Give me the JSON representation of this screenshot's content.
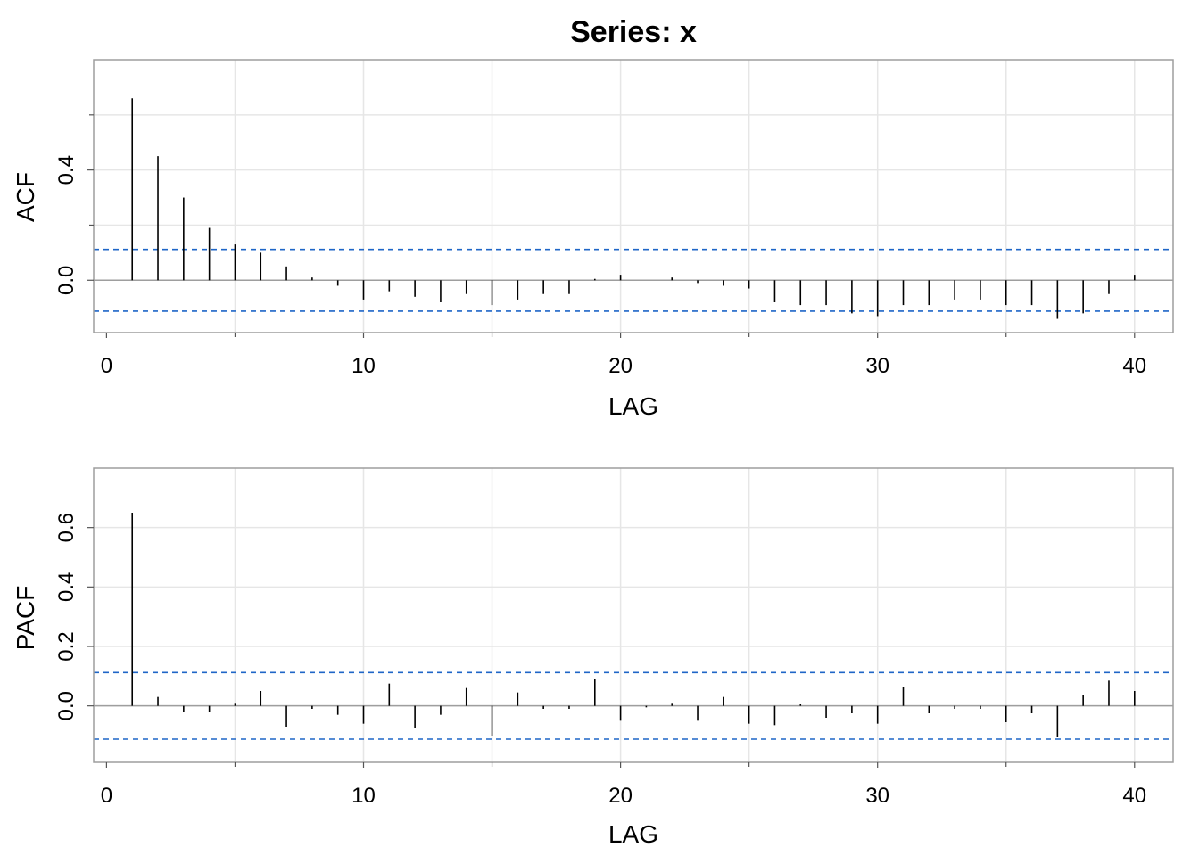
{
  "title": "Series:  x",
  "chart_data": [
    {
      "type": "bar",
      "name": "acf-panel",
      "xlabel": "LAG",
      "ylabel": "ACF",
      "xlim": [
        -0.5,
        41.5
      ],
      "ylim": [
        -0.19,
        0.8
      ],
      "x_ticks": [
        0,
        10,
        20,
        30,
        40
      ],
      "x_tick_labels": [
        "0",
        "10",
        "20",
        "30",
        "40"
      ],
      "x_minor_ticks": [
        5,
        15,
        25,
        35
      ],
      "y_ticks": [
        0.0,
        0.4
      ],
      "y_tick_labels": [
        "0.0",
        "0.4"
      ],
      "y_minor_ticks": [
        0.2,
        0.6
      ],
      "x_grid": [
        5,
        10,
        15,
        20,
        25,
        30,
        35,
        40
      ],
      "y_grid": [
        0.0,
        0.2,
        0.4,
        0.6
      ],
      "grid": true,
      "confidence_bound": 0.112,
      "lags": [
        1,
        2,
        3,
        4,
        5,
        6,
        7,
        8,
        9,
        10,
        11,
        12,
        13,
        14,
        15,
        16,
        17,
        18,
        19,
        20,
        21,
        22,
        23,
        24,
        25,
        26,
        27,
        28,
        29,
        30,
        31,
        32,
        33,
        34,
        35,
        36,
        37,
        38,
        39,
        40
      ],
      "values": [
        0.66,
        0.45,
        0.3,
        0.19,
        0.13,
        0.1,
        0.05,
        0.01,
        -0.02,
        -0.07,
        -0.04,
        -0.06,
        -0.08,
        -0.05,
        -0.09,
        -0.07,
        -0.05,
        -0.05,
        0.005,
        0.02,
        0.0,
        0.01,
        -0.01,
        -0.02,
        -0.03,
        -0.08,
        -0.09,
        -0.09,
        -0.12,
        -0.13,
        -0.09,
        -0.09,
        -0.07,
        -0.07,
        -0.09,
        -0.09,
        -0.14,
        -0.12,
        -0.05,
        0.02
      ]
    },
    {
      "type": "bar",
      "name": "pacf-panel",
      "xlabel": "LAG",
      "ylabel": "PACF",
      "xlim": [
        -0.5,
        41.5
      ],
      "ylim": [
        -0.19,
        0.8
      ],
      "x_ticks": [
        0,
        10,
        20,
        30,
        40
      ],
      "x_tick_labels": [
        "0",
        "10",
        "20",
        "30",
        "40"
      ],
      "x_minor_ticks": [
        5,
        15,
        25,
        35
      ],
      "y_ticks": [
        0.0,
        0.2,
        0.4,
        0.6
      ],
      "y_tick_labels": [
        "0.0",
        "0.2",
        "0.4",
        "0.6"
      ],
      "y_minor_ticks": [],
      "x_grid": [
        5,
        10,
        15,
        20,
        25,
        30,
        35,
        40
      ],
      "y_grid": [
        0.0,
        0.2,
        0.4,
        0.6
      ],
      "grid": true,
      "confidence_bound": 0.112,
      "lags": [
        1,
        2,
        3,
        4,
        5,
        6,
        7,
        8,
        9,
        10,
        11,
        12,
        13,
        14,
        15,
        16,
        17,
        18,
        19,
        20,
        21,
        22,
        23,
        24,
        25,
        26,
        27,
        28,
        29,
        30,
        31,
        32,
        33,
        34,
        35,
        36,
        37,
        38,
        39,
        40
      ],
      "values": [
        0.65,
        0.03,
        -0.02,
        -0.02,
        0.01,
        0.05,
        -0.07,
        -0.01,
        -0.03,
        -0.06,
        0.075,
        -0.075,
        -0.03,
        0.06,
        -0.1,
        0.045,
        -0.01,
        -0.01,
        0.09,
        -0.05,
        -0.005,
        0.01,
        -0.05,
        0.03,
        -0.06,
        -0.065,
        0.005,
        -0.04,
        -0.025,
        -0.06,
        0.065,
        -0.025,
        -0.01,
        -0.01,
        -0.055,
        -0.025,
        -0.105,
        0.035,
        0.085,
        0.05
      ]
    }
  ],
  "colors": {
    "stem": "#000000",
    "confidence": "#1f66c7",
    "grid": "#e6e6e6",
    "frame": "#9e9e9e",
    "zero_line": "#9e9e9e",
    "ticks": "#555555"
  }
}
